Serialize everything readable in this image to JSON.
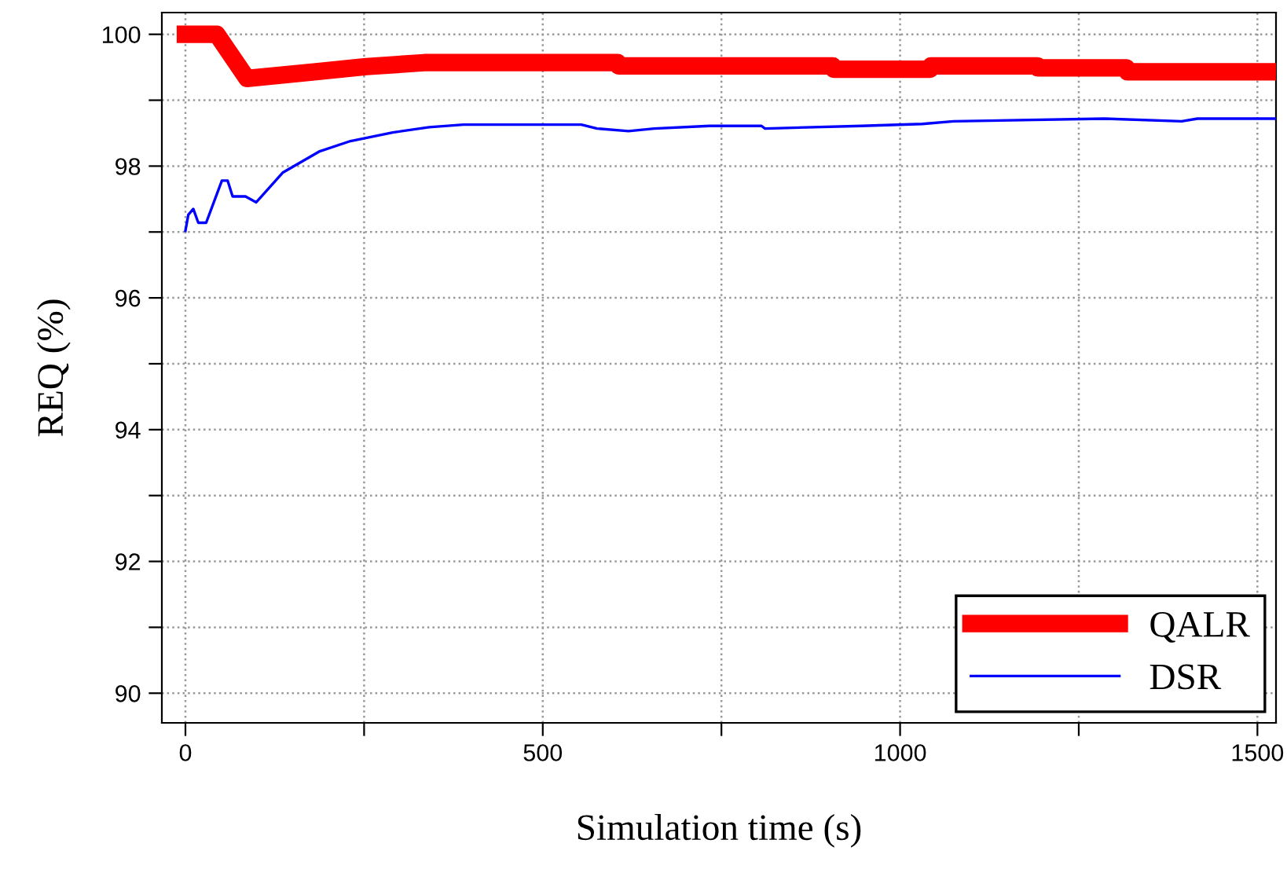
{
  "chart_data": {
    "type": "line",
    "xlabel": "Simulation time (s)",
    "ylabel": "REQ (%)",
    "xlim": [
      -33,
      1526
    ],
    "ylim": [
      89.55,
      100.33
    ],
    "xticks": [
      0,
      {
        "value": 250,
        "label": null
      },
      500,
      {
        "value": 750,
        "label": null
      },
      1000,
      {
        "value": 1250,
        "label": null
      },
      1500
    ],
    "yticks": [
      90,
      {
        "value": 91,
        "label": null
      },
      92,
      {
        "value": 93,
        "label": null
      },
      94,
      {
        "value": 95,
        "label": null
      },
      96,
      {
        "value": 97,
        "label": null
      },
      98,
      {
        "value": 99,
        "label": null
      },
      100
    ],
    "grid": true,
    "legend": "bottom right",
    "line_style": "solid",
    "marker": "none",
    "series": [
      {
        "name": "QALR",
        "color": "#ff0000",
        "x": [
          0,
          44,
          86,
          180,
          253,
          334,
          605,
          606,
          906,
          907,
          1042,
          1043,
          1192,
          1193,
          1317,
          1318,
          1526
        ],
        "values": [
          100,
          100,
          99.33,
          99.43,
          99.51,
          99.57,
          99.57,
          99.52,
          99.52,
          99.47,
          99.47,
          99.52,
          99.52,
          99.49,
          99.49,
          99.43,
          99.43
        ]
      },
      {
        "name": "DSR",
        "color": "#0000ff",
        "x": [
          0,
          4,
          11,
          18,
          29,
          51,
          59,
          66,
          84,
          99,
          136,
          187,
          231,
          290,
          341,
          389,
          554,
          576,
          620,
          656,
          733,
          806,
          811,
          946,
          1031,
          1075,
          1286,
          1394,
          1416,
          1526
        ],
        "values": [
          97.02,
          97.26,
          97.35,
          97.14,
          97.14,
          97.78,
          97.78,
          97.54,
          97.54,
          97.45,
          97.9,
          98.22,
          98.38,
          98.51,
          98.59,
          98.63,
          98.63,
          98.57,
          98.53,
          98.57,
          98.61,
          98.61,
          98.57,
          98.61,
          98.64,
          98.68,
          98.72,
          98.68,
          98.72,
          98.72
        ]
      }
    ]
  }
}
